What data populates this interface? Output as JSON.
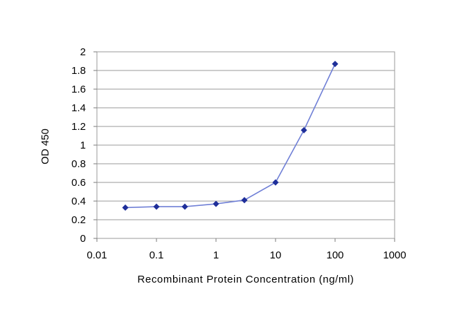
{
  "chart_data": {
    "type": "line",
    "title": "",
    "xlabel": "Recombinant Protein Concentration (ng/ml)",
    "ylabel": "OD 450",
    "x_scale": "log",
    "xlim": [
      0.01,
      1000
    ],
    "ylim": [
      0,
      2
    ],
    "x_ticks": [
      0.01,
      0.1,
      1,
      10,
      100,
      1000
    ],
    "x_tick_labels": [
      "0.01",
      "0.1",
      "1",
      "10",
      "100",
      "1000"
    ],
    "y_ticks": [
      0,
      0.2,
      0.4,
      0.6,
      0.8,
      1,
      1.2,
      1.4,
      1.6,
      1.8,
      2
    ],
    "y_tick_labels": [
      "0",
      "0.2",
      "0.4",
      "0.6",
      "0.8",
      "1",
      "1.2",
      "1.4",
      "1.6",
      "1.8",
      "2"
    ],
    "grid": "horizontal",
    "legend": "none",
    "series": [
      {
        "x": [
          0.03,
          0.1,
          0.3,
          1,
          3,
          10,
          30,
          100
        ],
        "y": [
          0.33,
          0.34,
          0.34,
          0.37,
          0.41,
          0.6,
          1.16,
          1.87
        ]
      }
    ],
    "colors": {
      "line": "#6f7fd6",
      "marker": "#1f2f9a",
      "grid": "#9a9a9a",
      "axis": "#7a7a7a"
    }
  }
}
